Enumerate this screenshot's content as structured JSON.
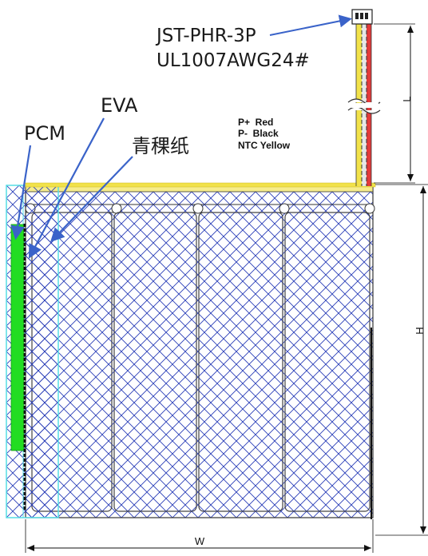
{
  "connector": {
    "model": "JST-PHR-3P",
    "wire_spec": "UL1007AWG24#"
  },
  "callouts": {
    "eva": "EVA",
    "pcm": "PCM",
    "paper": "青稞纸"
  },
  "wire_legend": {
    "lines": [
      "P+  Red",
      "P-  Black",
      "NTC Yellow"
    ]
  },
  "dimensions": {
    "length": "L",
    "height": "H",
    "width": "W"
  },
  "colors": {
    "arrow": "#3a63c9",
    "hatch": "#2a3fb8",
    "pcm": "#22dd22",
    "eva": "#55dde6",
    "wire_red": "#e23a3a",
    "wire_yellow": "#f2e24a",
    "wire_black": "#222222",
    "outline": "#333333"
  }
}
